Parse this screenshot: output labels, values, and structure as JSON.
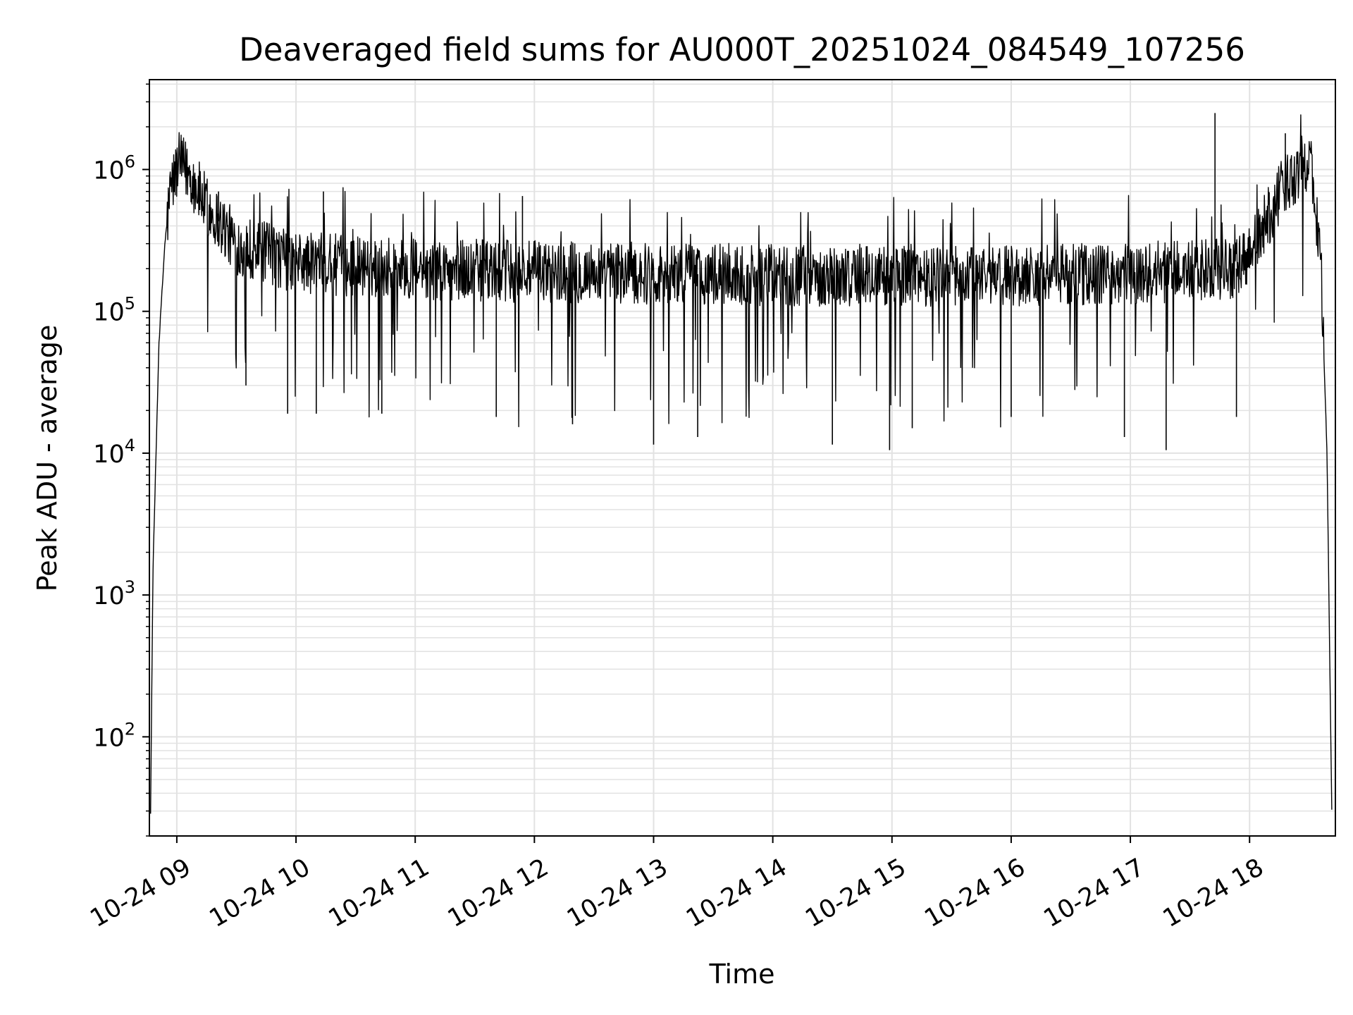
{
  "chart_data": {
    "type": "line",
    "title": "Deaveraged field sums for AU000T_20251024_084549_107256",
    "xlabel": "Time",
    "ylabel": "Peak ADU - average",
    "yscale": "log",
    "ylim": [
      20,
      4300000
    ],
    "xlim_hours": [
      8.77,
      18.72
    ],
    "grid": true,
    "x_ticks": [
      {
        "hour": 9,
        "label": "10-24 09"
      },
      {
        "hour": 10,
        "label": "10-24 10"
      },
      {
        "hour": 11,
        "label": "10-24 11"
      },
      {
        "hour": 12,
        "label": "10-24 12"
      },
      {
        "hour": 13,
        "label": "10-24 13"
      },
      {
        "hour": 14,
        "label": "10-24 14"
      },
      {
        "hour": 15,
        "label": "10-24 15"
      },
      {
        "hour": 16,
        "label": "10-24 16"
      },
      {
        "hour": 17,
        "label": "10-24 17"
      },
      {
        "hour": 18,
        "label": "10-24 18"
      }
    ],
    "y_ticks": [
      {
        "value": 100,
        "base": "10",
        "exp": "2"
      },
      {
        "value": 1000,
        "base": "10",
        "exp": "3"
      },
      {
        "value": 10000,
        "base": "10",
        "exp": "4"
      },
      {
        "value": 100000,
        "base": "10",
        "exp": "5"
      },
      {
        "value": 1000000,
        "base": "10",
        "exp": "6"
      }
    ],
    "series": [
      {
        "name": "deaveraged field sum",
        "color": "#000000",
        "envelope": [
          {
            "hour": 8.78,
            "value": 30
          },
          {
            "hour": 8.8,
            "value": 1500
          },
          {
            "hour": 8.85,
            "value": 60000
          },
          {
            "hour": 8.9,
            "value": 300000
          },
          {
            "hour": 8.95,
            "value": 750000
          },
          {
            "hour": 9.02,
            "value": 1100000
          },
          {
            "hour": 9.1,
            "value": 950000
          },
          {
            "hour": 9.25,
            "value": 550000
          },
          {
            "hour": 9.5,
            "value": 300000
          },
          {
            "hour": 10.0,
            "value": 220000
          },
          {
            "hour": 11.0,
            "value": 200000
          },
          {
            "hour": 12.0,
            "value": 190000
          },
          {
            "hour": 13.0,
            "value": 185000
          },
          {
            "hour": 14.0,
            "value": 180000
          },
          {
            "hour": 15.0,
            "value": 180000
          },
          {
            "hour": 16.0,
            "value": 180000
          },
          {
            "hour": 17.0,
            "value": 185000
          },
          {
            "hour": 17.9,
            "value": 200000
          },
          {
            "hour": 18.05,
            "value": 300000
          },
          {
            "hour": 18.3,
            "value": 800000
          },
          {
            "hour": 18.5,
            "value": 1200000
          },
          {
            "hour": 18.55,
            "value": 600000
          },
          {
            "hour": 18.6,
            "value": 200000
          },
          {
            "hour": 18.65,
            "value": 10000
          },
          {
            "hour": 18.69,
            "value": 30
          }
        ],
        "spikes_up": [
          {
            "hour": 9.35,
            "value": 700000
          },
          {
            "hour": 10.23,
            "value": 700000
          },
          {
            "hour": 11.9,
            "value": 650000
          },
          {
            "hour": 17.71,
            "value": 2500000
          },
          {
            "hour": 18.3,
            "value": 1800000
          }
        ],
        "spikes_down": [
          {
            "hour": 9.58,
            "value": 30000
          },
          {
            "hour": 9.93,
            "value": 19000
          },
          {
            "hour": 10.17,
            "value": 19000
          },
          {
            "hour": 10.72,
            "value": 19000
          },
          {
            "hour": 11.68,
            "value": 18000
          },
          {
            "hour": 12.32,
            "value": 16000
          },
          {
            "hour": 13.0,
            "value": 11500
          },
          {
            "hour": 13.37,
            "value": 13000
          },
          {
            "hour": 14.5,
            "value": 11500
          },
          {
            "hour": 14.98,
            "value": 10500
          },
          {
            "hour": 15.17,
            "value": 15000
          },
          {
            "hour": 16.0,
            "value": 18000
          },
          {
            "hour": 16.95,
            "value": 13000
          },
          {
            "hour": 17.3,
            "value": 10500
          },
          {
            "hour": 17.89,
            "value": 18000
          }
        ]
      }
    ]
  }
}
